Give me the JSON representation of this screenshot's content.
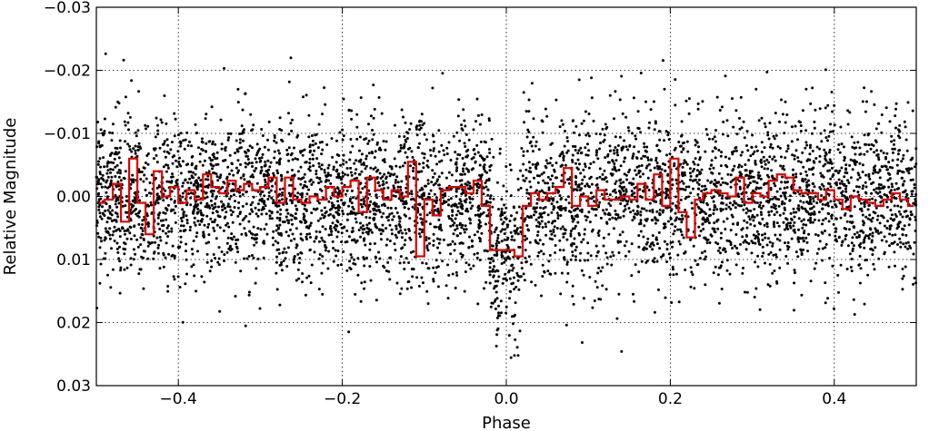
{
  "chart_data": {
    "type": "scatter",
    "title": "",
    "xlabel": "Phase",
    "ylabel": "Relative Magnitude",
    "xlim": [
      -0.5,
      0.5
    ],
    "ylim": [
      0.03,
      -0.03
    ],
    "y_inverted": true,
    "grid": true,
    "grid_style": "dotted",
    "legend": "none",
    "x_ticks": [
      -0.4,
      -0.2,
      0.0,
      0.2,
      0.4
    ],
    "x_tick_labels": [
      "−0.4",
      "−0.2",
      "0.0",
      "0.2",
      "0.4"
    ],
    "y_ticks": [
      -0.03,
      -0.02,
      -0.01,
      0.0,
      0.01,
      0.02,
      0.03
    ],
    "y_tick_labels": [
      "−0.03",
      "−0.02",
      "−0.01",
      "0.00",
      "0.01",
      "0.02",
      "0.03"
    ],
    "colors": {
      "points": "#000000",
      "binned": "#e00000",
      "grid": "#000000"
    },
    "series": [
      {
        "kind": "scatter",
        "description_of_distribution": "dense cloud of ~5000 points, scatter sigma ~0.006 mag, centered on 0 with transit dip near phase 0",
        "dip": {
          "center": 0.0,
          "half_width": 0.02,
          "depth": 0.009
        },
        "sigma": 0.0065,
        "count": 5200
      },
      {
        "kind": "step",
        "bin_width": 0.01,
        "x": [
          -0.5,
          -0.49,
          -0.48,
          -0.47,
          -0.46,
          -0.45,
          -0.44,
          -0.43,
          -0.42,
          -0.41,
          -0.4,
          -0.39,
          -0.38,
          -0.37,
          -0.36,
          -0.35,
          -0.34,
          -0.33,
          -0.32,
          -0.31,
          -0.3,
          -0.29,
          -0.28,
          -0.27,
          -0.26,
          -0.25,
          -0.24,
          -0.23,
          -0.22,
          -0.21,
          -0.2,
          -0.19,
          -0.18,
          -0.17,
          -0.16,
          -0.15,
          -0.14,
          -0.13,
          -0.12,
          -0.11,
          -0.1,
          -0.09,
          -0.08,
          -0.07,
          -0.06,
          -0.05,
          -0.04,
          -0.03,
          -0.02,
          -0.01,
          0.0,
          0.01,
          0.02,
          0.03,
          0.04,
          0.05,
          0.06,
          0.07,
          0.08,
          0.09,
          0.1,
          0.11,
          0.12,
          0.13,
          0.14,
          0.15,
          0.16,
          0.17,
          0.18,
          0.19,
          0.2,
          0.21,
          0.22,
          0.23,
          0.24,
          0.25,
          0.26,
          0.27,
          0.28,
          0.29,
          0.3,
          0.31,
          0.32,
          0.33,
          0.34,
          0.35,
          0.36,
          0.37,
          0.38,
          0.39,
          0.4,
          0.41,
          0.42,
          0.43,
          0.44,
          0.45,
          0.46,
          0.47,
          0.48,
          0.49
        ],
        "y": [
          0.001,
          0.0005,
          -0.002,
          0.004,
          -0.006,
          0.001,
          0.006,
          -0.004,
          0.0,
          -0.0015,
          0.001,
          -0.001,
          0.0005,
          -0.0035,
          -0.0015,
          -0.0005,
          -0.0025,
          -0.001,
          -0.002,
          -0.001,
          -0.0015,
          -0.003,
          0.001,
          -0.003,
          0.0005,
          0.001,
          0.0,
          0.0005,
          -0.0015,
          0.0,
          -0.0015,
          -0.0025,
          0.0025,
          -0.003,
          -0.001,
          0.0005,
          -0.001,
          0.0,
          -0.0055,
          0.0095,
          0.0005,
          0.003,
          -0.001,
          -0.0015,
          -0.0015,
          -0.0005,
          -0.0025,
          0.0015,
          0.0085,
          0.0085,
          0.0085,
          0.0095,
          0.0015,
          -0.0005,
          0.0005,
          -0.0005,
          -0.0015,
          -0.0045,
          0.0015,
          0.0,
          0.0015,
          -0.001,
          0.0005,
          0.0005,
          0.0,
          0.0005,
          -0.002,
          0.0005,
          -0.0035,
          0.0015,
          -0.006,
          0.0025,
          0.0065,
          0.0005,
          -0.0005,
          -0.001,
          -0.0005,
          0.0,
          -0.003,
          0.001,
          -0.0005,
          0.0,
          -0.0025,
          -0.0035,
          -0.003,
          -0.001,
          -0.0005,
          -0.0005,
          0.0005,
          -0.001,
          0.0005,
          0.002,
          0.0,
          0.0005,
          0.001,
          0.0015,
          0.0005,
          -0.0005,
          0.0005,
          0.0015
        ]
      }
    ]
  }
}
